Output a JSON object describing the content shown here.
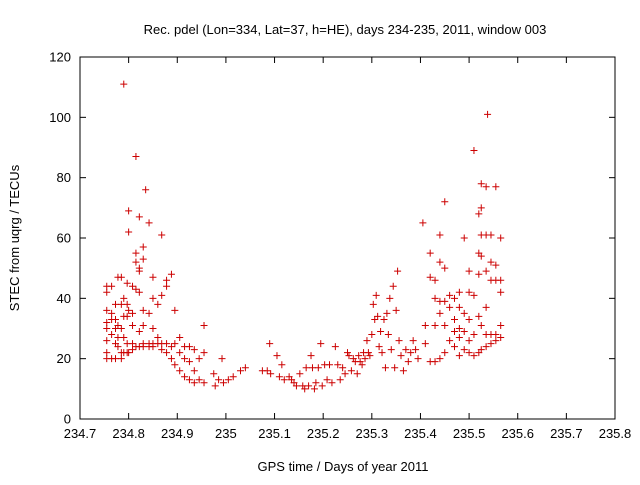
{
  "chart_data": {
    "type": "scatter",
    "title": "Rec. pdel (Lon=334, Lat=37, h=HE), days 234-235, 2011, window 003",
    "xlabel": "GPS time / Days of year 2011",
    "ylabel": "STEC from uqrg / TECUs",
    "xlim": [
      234.7,
      235.8
    ],
    "ylim": [
      0,
      120
    ],
    "xticks": [
      234.7,
      234.8,
      234.9,
      235,
      235.1,
      235.2,
      235.3,
      235.4,
      235.5,
      235.6,
      235.7,
      235.8
    ],
    "xtick_labels": [
      "234.7",
      "234.8",
      "234.9",
      "235",
      "235.1",
      "235.2",
      "235.3",
      "235.4",
      "235.5",
      "235.6",
      "235.7",
      "235.8"
    ],
    "yticks": [
      0,
      20,
      40,
      60,
      80,
      100,
      120
    ],
    "ytick_labels": [
      "0",
      "20",
      "40",
      "60",
      "80",
      "100",
      "120"
    ],
    "grid": false,
    "marker": "plus",
    "marker_color": "#cc0000",
    "points": [
      [
        234.755,
        44
      ],
      [
        234.755,
        42
      ],
      [
        234.755,
        36
      ],
      [
        234.755,
        32
      ],
      [
        234.755,
        30
      ],
      [
        234.755,
        26
      ],
      [
        234.755,
        22
      ],
      [
        234.755,
        20
      ],
      [
        234.765,
        44
      ],
      [
        234.765,
        35
      ],
      [
        234.765,
        33
      ],
      [
        234.765,
        28
      ],
      [
        234.765,
        20
      ],
      [
        234.773,
        38
      ],
      [
        234.773,
        33
      ],
      [
        234.773,
        30
      ],
      [
        234.773,
        25
      ],
      [
        234.773,
        20
      ],
      [
        234.778,
        47
      ],
      [
        234.778,
        31
      ],
      [
        234.778,
        27
      ],
      [
        234.778,
        24
      ],
      [
        234.785,
        47
      ],
      [
        234.785,
        38
      ],
      [
        234.785,
        30
      ],
      [
        234.785,
        22
      ],
      [
        234.785,
        20
      ],
      [
        234.79,
        111
      ],
      [
        234.79,
        40
      ],
      [
        234.79,
        34
      ],
      [
        234.79,
        27
      ],
      [
        234.79,
        22
      ],
      [
        234.797,
        45
      ],
      [
        234.797,
        38
      ],
      [
        234.797,
        34
      ],
      [
        234.797,
        25
      ],
      [
        234.797,
        22
      ],
      [
        234.8,
        69
      ],
      [
        234.8,
        62
      ],
      [
        234.8,
        36
      ],
      [
        234.8,
        22
      ],
      [
        234.808,
        44
      ],
      [
        234.808,
        35
      ],
      [
        234.808,
        31
      ],
      [
        234.808,
        25
      ],
      [
        234.808,
        23
      ],
      [
        234.815,
        87
      ],
      [
        234.815,
        55
      ],
      [
        234.815,
        52
      ],
      [
        234.815,
        43
      ],
      [
        234.815,
        24
      ],
      [
        234.822,
        67
      ],
      [
        234.822,
        50
      ],
      [
        234.822,
        49
      ],
      [
        234.822,
        42
      ],
      [
        234.822,
        29
      ],
      [
        234.822,
        24
      ],
      [
        234.83,
        57
      ],
      [
        234.83,
        53
      ],
      [
        234.83,
        36
      ],
      [
        234.83,
        31
      ],
      [
        234.83,
        25
      ],
      [
        234.83,
        24
      ],
      [
        234.835,
        76
      ],
      [
        234.842,
        65
      ],
      [
        234.842,
        35
      ],
      [
        234.842,
        25
      ],
      [
        234.842,
        24
      ],
      [
        234.85,
        47
      ],
      [
        234.85,
        40
      ],
      [
        234.85,
        30
      ],
      [
        234.85,
        25
      ],
      [
        234.85,
        24
      ],
      [
        234.86,
        38
      ],
      [
        234.86,
        27
      ],
      [
        234.86,
        25
      ],
      [
        234.868,
        61
      ],
      [
        234.868,
        41
      ],
      [
        234.868,
        25
      ],
      [
        234.868,
        23
      ],
      [
        234.878,
        46
      ],
      [
        234.878,
        44
      ],
      [
        234.878,
        25
      ],
      [
        234.878,
        22
      ],
      [
        234.888,
        48
      ],
      [
        234.888,
        24
      ],
      [
        234.888,
        20
      ],
      [
        234.895,
        36
      ],
      [
        234.895,
        25
      ],
      [
        234.895,
        18
      ],
      [
        234.905,
        27
      ],
      [
        234.905,
        22
      ],
      [
        234.905,
        16
      ],
      [
        234.915,
        24
      ],
      [
        234.915,
        20
      ],
      [
        234.915,
        14
      ],
      [
        234.925,
        24
      ],
      [
        234.925,
        19
      ],
      [
        234.925,
        13
      ],
      [
        234.935,
        23
      ],
      [
        234.935,
        16
      ],
      [
        234.935,
        12
      ],
      [
        234.945,
        20
      ],
      [
        234.945,
        13
      ],
      [
        234.955,
        31
      ],
      [
        234.955,
        22
      ],
      [
        234.955,
        12
      ],
      [
        234.975,
        15
      ],
      [
        234.978,
        11
      ],
      [
        234.985,
        13
      ],
      [
        234.992,
        20
      ],
      [
        234.995,
        12
      ],
      [
        235.005,
        13
      ],
      [
        235.015,
        14
      ],
      [
        235.03,
        16
      ],
      [
        235.04,
        17
      ],
      [
        235.075,
        16
      ],
      [
        235.085,
        16
      ],
      [
        235.09,
        25
      ],
      [
        235.092,
        15
      ],
      [
        235.105,
        21
      ],
      [
        235.11,
        14
      ],
      [
        235.115,
        18
      ],
      [
        235.12,
        13
      ],
      [
        235.13,
        14
      ],
      [
        235.135,
        13
      ],
      [
        235.14,
        12
      ],
      [
        235.145,
        11
      ],
      [
        235.152,
        15
      ],
      [
        235.158,
        11
      ],
      [
        235.162,
        10
      ],
      [
        235.165,
        17
      ],
      [
        235.17,
        11
      ],
      [
        235.175,
        21
      ],
      [
        235.178,
        17
      ],
      [
        235.182,
        10
      ],
      [
        235.185,
        12
      ],
      [
        235.19,
        17
      ],
      [
        235.195,
        25
      ],
      [
        235.198,
        11
      ],
      [
        235.203,
        18
      ],
      [
        235.208,
        13
      ],
      [
        235.213,
        18
      ],
      [
        235.218,
        12
      ],
      [
        235.225,
        24
      ],
      [
        235.23,
        18
      ],
      [
        235.235,
        13
      ],
      [
        235.24,
        17
      ],
      [
        235.245,
        15
      ],
      [
        235.25,
        22
      ],
      [
        235.253,
        21
      ],
      [
        235.258,
        16
      ],
      [
        235.262,
        20
      ],
      [
        235.266,
        19
      ],
      [
        235.27,
        15
      ],
      [
        235.273,
        21
      ],
      [
        235.276,
        19
      ],
      [
        235.28,
        18
      ],
      [
        235.283,
        22
      ],
      [
        235.286,
        20
      ],
      [
        235.29,
        26
      ],
      [
        235.293,
        22
      ],
      [
        235.296,
        21
      ],
      [
        235.3,
        28
      ],
      [
        235.303,
        38
      ],
      [
        235.306,
        33
      ],
      [
        235.309,
        41
      ],
      [
        235.312,
        34
      ],
      [
        235.315,
        24
      ],
      [
        235.318,
        29
      ],
      [
        235.321,
        22
      ],
      [
        235.325,
        33
      ],
      [
        235.328,
        17
      ],
      [
        235.331,
        35
      ],
      [
        235.334,
        28
      ],
      [
        235.337,
        40
      ],
      [
        235.34,
        23
      ],
      [
        235.344,
        44
      ],
      [
        235.347,
        17
      ],
      [
        235.35,
        36
      ],
      [
        235.353,
        49
      ],
      [
        235.356,
        26
      ],
      [
        235.36,
        21
      ],
      [
        235.365,
        16
      ],
      [
        235.37,
        23
      ],
      [
        235.375,
        19
      ],
      [
        235.38,
        22
      ],
      [
        235.385,
        26
      ],
      [
        235.39,
        23
      ],
      [
        235.395,
        20
      ],
      [
        235.405,
        65
      ],
      [
        235.41,
        31
      ],
      [
        235.41,
        25
      ],
      [
        235.42,
        55
      ],
      [
        235.42,
        47
      ],
      [
        235.42,
        19
      ],
      [
        235.43,
        46
      ],
      [
        235.43,
        40
      ],
      [
        235.43,
        31
      ],
      [
        235.43,
        19
      ],
      [
        235.44,
        61
      ],
      [
        235.44,
        52
      ],
      [
        235.44,
        39
      ],
      [
        235.44,
        35
      ],
      [
        235.44,
        20
      ],
      [
        235.45,
        72
      ],
      [
        235.45,
        50
      ],
      [
        235.45,
        39
      ],
      [
        235.45,
        31
      ],
      [
        235.45,
        22
      ],
      [
        235.46,
        41
      ],
      [
        235.46,
        37
      ],
      [
        235.46,
        26
      ],
      [
        235.47,
        40
      ],
      [
        235.47,
        33
      ],
      [
        235.47,
        29
      ],
      [
        235.47,
        24
      ],
      [
        235.48,
        42
      ],
      [
        235.48,
        37
      ],
      [
        235.48,
        30
      ],
      [
        235.48,
        27
      ],
      [
        235.48,
        21
      ],
      [
        235.49,
        60
      ],
      [
        235.49,
        35
      ],
      [
        235.49,
        29
      ],
      [
        235.49,
        23
      ],
      [
        235.5,
        49
      ],
      [
        235.5,
        42
      ],
      [
        235.5,
        33
      ],
      [
        235.5,
        26
      ],
      [
        235.5,
        22
      ],
      [
        235.51,
        89
      ],
      [
        235.51,
        41
      ],
      [
        235.51,
        28
      ],
      [
        235.51,
        21
      ],
      [
        235.52,
        68
      ],
      [
        235.52,
        55
      ],
      [
        235.52,
        48
      ],
      [
        235.52,
        34
      ],
      [
        235.52,
        22
      ],
      [
        235.525,
        78
      ],
      [
        235.525,
        70
      ],
      [
        235.525,
        61
      ],
      [
        235.525,
        54
      ],
      [
        235.525,
        31
      ],
      [
        235.525,
        23
      ],
      [
        235.535,
        77
      ],
      [
        235.535,
        61
      ],
      [
        235.535,
        49
      ],
      [
        235.535,
        37
      ],
      [
        235.535,
        28
      ],
      [
        235.535,
        24
      ],
      [
        235.538,
        101
      ],
      [
        235.545,
        61
      ],
      [
        235.545,
        52
      ],
      [
        235.545,
        46
      ],
      [
        235.545,
        28
      ],
      [
        235.545,
        25
      ],
      [
        235.555,
        77
      ],
      [
        235.555,
        51
      ],
      [
        235.555,
        46
      ],
      [
        235.555,
        28
      ],
      [
        235.555,
        26
      ],
      [
        235.565,
        60
      ],
      [
        235.565,
        46
      ],
      [
        235.565,
        42
      ],
      [
        235.565,
        31
      ],
      [
        235.565,
        27
      ]
    ]
  }
}
